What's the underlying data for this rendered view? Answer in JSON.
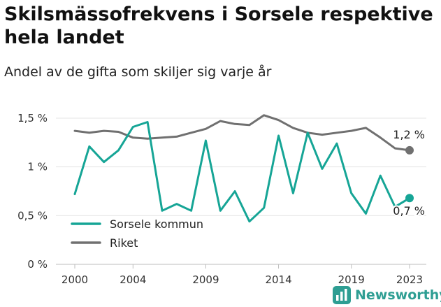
{
  "header": {
    "title": "Skilsmässofrekvens i Sorsele respektive hela landet",
    "subtitle": "Andel av de gifta som skiljer sig varje år"
  },
  "brand": {
    "name": "Newsworthy",
    "icon": "newsworthy-logo-icon",
    "color": "#2e9e93"
  },
  "chart_data": {
    "type": "line",
    "x": [
      2000,
      2001,
      2002,
      2003,
      2004,
      2005,
      2006,
      2007,
      2008,
      2009,
      2010,
      2011,
      2012,
      2013,
      2014,
      2015,
      2016,
      2017,
      2018,
      2019,
      2020,
      2021,
      2022,
      2023
    ],
    "x_ticks": [
      2000,
      2004,
      2009,
      2014,
      2019,
      2023
    ],
    "x_tick_labels": [
      "2000",
      "2004",
      "2009",
      "2014",
      "2019",
      "2023"
    ],
    "y_ticks": [
      0,
      0.5,
      1,
      1.5
    ],
    "y_tick_labels": [
      "0 %",
      "0,5 %",
      "1 %",
      "1,5 %"
    ],
    "ylim": [
      0,
      1.6
    ],
    "grid": "horizontal",
    "legend_position": "bottom-left",
    "series": [
      {
        "name": "Sorsele kommun",
        "color": "#16a596",
        "values": [
          0.72,
          1.21,
          1.05,
          1.17,
          1.41,
          1.46,
          0.55,
          0.62,
          0.55,
          1.27,
          0.55,
          0.75,
          0.44,
          0.58,
          1.32,
          0.73,
          1.35,
          0.98,
          1.24,
          0.73,
          0.52,
          0.91,
          0.59,
          0.68
        ],
        "end_label": "0,7 %"
      },
      {
        "name": "Riket",
        "color": "#707070",
        "values": [
          1.37,
          1.35,
          1.37,
          1.36,
          1.3,
          1.29,
          1.3,
          1.31,
          1.35,
          1.39,
          1.47,
          1.44,
          1.43,
          1.53,
          1.48,
          1.4,
          1.35,
          1.33,
          1.35,
          1.37,
          1.4,
          1.3,
          1.19,
          1.17
        ],
        "end_label": "1,2 %"
      }
    ]
  }
}
